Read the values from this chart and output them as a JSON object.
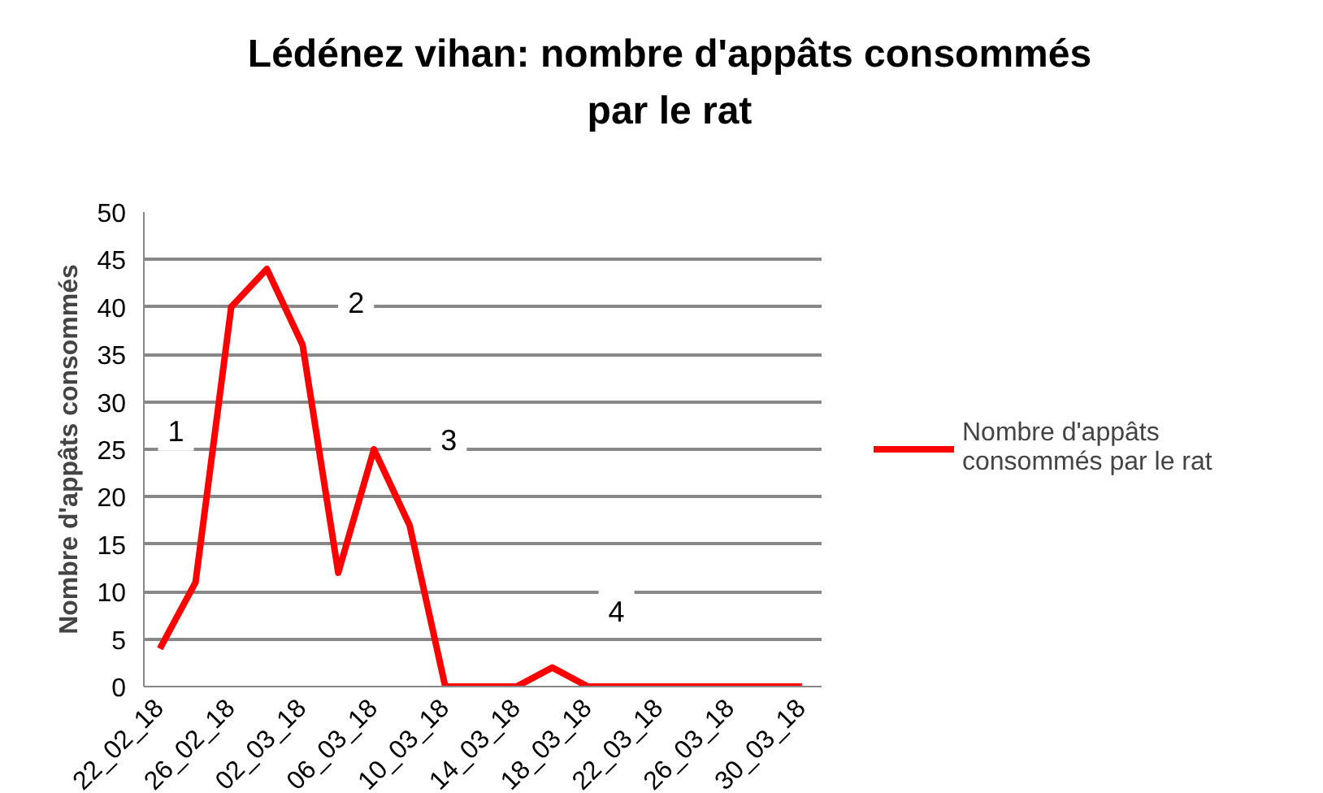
{
  "chart_data": {
    "type": "line",
    "title": "Lédénez vihan: nombre d'appâts consommés par le rat",
    "ylabel": "Nombre d'appâts consommés",
    "categories": [
      "22_02_18",
      null,
      "26_02_18",
      null,
      "02_03_18",
      null,
      "06_03_18",
      null,
      "10_03_18",
      null,
      "14_03_18",
      null,
      "18_03_18",
      null,
      "22_03_18",
      null,
      "26_03_18",
      null,
      "30_03_18"
    ],
    "series": [
      {
        "name": "Nombre d'appâts consommés par le rat",
        "color": "#ff0000",
        "values": [
          4,
          11,
          40,
          44,
          36,
          12,
          25,
          17,
          0,
          0,
          0,
          2,
          0,
          0,
          0,
          0,
          0,
          0,
          0
        ]
      }
    ],
    "ylim": [
      0,
      50
    ],
    "yticks": [
      0,
      5,
      10,
      15,
      20,
      25,
      30,
      35,
      40,
      45,
      50
    ],
    "annotations": [
      "1",
      "2",
      "3",
      "4"
    ],
    "grid": "y",
    "legend": "right",
    "marker": "none",
    "line_style": "solid"
  }
}
